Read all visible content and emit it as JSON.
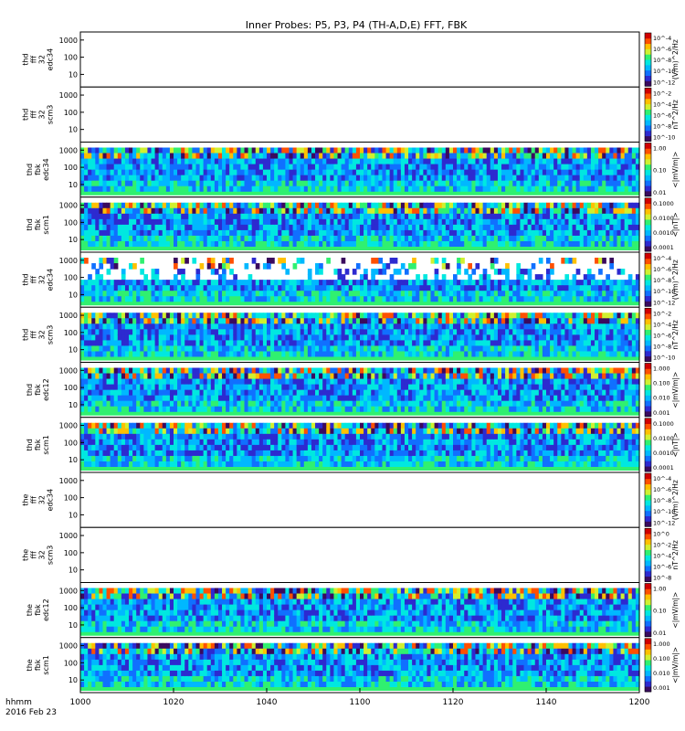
{
  "title": "Inner Probes: P5, P3, P4 (TH-A,D,E) FFT, FBK",
  "date_label": [
    "hhmm",
    "2016 Feb 23"
  ],
  "x_ticks": [
    "1000",
    "1020",
    "1040",
    "1100",
    "1120",
    "1140",
    "1200"
  ],
  "y_ticks": [
    "10",
    "100",
    "1000"
  ],
  "colormap": [
    "#3a0a5e",
    "#2d2ad0",
    "#1070ff",
    "#00b8ff",
    "#00e8e0",
    "#30f070",
    "#d0f030",
    "#ffc000",
    "#ff5000",
    "#d00000"
  ],
  "panels": [
    {
      "label": [
        "thd",
        "fff",
        "32",
        "edc34"
      ],
      "data_color": "",
      "empty": true,
      "colorbar_ticks": [
        "10^-4",
        "10^-6",
        "10^-8",
        "10^-10",
        "10^-12"
      ],
      "colorbar_unit": "(V/m)^2/Hz"
    },
    {
      "label": [
        "thd",
        "fff",
        "32",
        "scm3"
      ],
      "data_color": "",
      "empty": true,
      "colorbar_ticks": [
        "10^-2",
        "10^-4",
        "10^-6",
        "10^-8",
        "10^-10"
      ],
      "colorbar_unit": "nT^2/Hz"
    },
    {
      "label": [
        "thd",
        "fbk",
        "edc34"
      ],
      "data_color": "",
      "empty": false,
      "colorbar_ticks": [
        "1.00",
        "0.10",
        "0.01"
      ],
      "colorbar_unit": "<|mV/m|>"
    },
    {
      "label": [
        "thd",
        "fbk",
        "scm1"
      ],
      "data_color": "",
      "empty": false,
      "colorbar_ticks": [
        "0.1000",
        "0.0100",
        "0.0010",
        "0.0001"
      ],
      "colorbar_unit": "<|nT|>"
    },
    {
      "label": [
        "thd",
        "fff",
        "32",
        "edc34"
      ],
      "data_color": "",
      "empty": false,
      "colorbar_ticks": [
        "10^-4",
        "10^-6",
        "10^-8",
        "10^-10",
        "10^-12"
      ],
      "colorbar_unit": "(V/m)^2/Hz"
    },
    {
      "label": [
        "thd",
        "fff",
        "32",
        "scm3"
      ],
      "data_color": "",
      "empty": false,
      "colorbar_ticks": [
        "10^-2",
        "10^-4",
        "10^-6",
        "10^-8",
        "10^-10"
      ],
      "colorbar_unit": "nT^2/Hz"
    },
    {
      "label": [
        "thd",
        "fbk",
        "edc12"
      ],
      "data_color": "",
      "empty": false,
      "colorbar_ticks": [
        "1.000",
        "0.100",
        "0.010",
        "0.001"
      ],
      "colorbar_unit": "<|mV/m|>"
    },
    {
      "label": [
        "thd",
        "fbk",
        "scm1"
      ],
      "data_color": "",
      "empty": false,
      "colorbar_ticks": [
        "0.1000",
        "0.0100",
        "0.0010",
        "0.0001"
      ],
      "colorbar_unit": "<|nT|>"
    },
    {
      "label": [
        "the",
        "fff",
        "32",
        "edc34"
      ],
      "data_color": "",
      "empty": true,
      "colorbar_ticks": [
        "10^-4",
        "10^-6",
        "10^-8",
        "10^-10",
        "10^-12"
      ],
      "colorbar_unit": "(V/m)^2/Hz"
    },
    {
      "label": [
        "the",
        "fff",
        "32",
        "scm3"
      ],
      "data_color": "",
      "empty": true,
      "colorbar_ticks": [
        "10^0",
        "10^-2",
        "10^-4",
        "10^-6",
        "10^-8"
      ],
      "colorbar_unit": "nT^2/Hz"
    },
    {
      "label": [
        "the",
        "fbk",
        "edc12"
      ],
      "data_color": "",
      "empty": false,
      "colorbar_ticks": [
        "1.00",
        "0.10",
        "0.01"
      ],
      "colorbar_unit": "<|mV/m|>"
    },
    {
      "label": [
        "the",
        "fbk",
        "scm1"
      ],
      "data_color": "",
      "empty": false,
      "colorbar_ticks": [
        "1.000",
        "0.100",
        "0.010",
        "0.001"
      ],
      "colorbar_unit": "<|mV/m|>"
    }
  ],
  "chart_data": {
    "type": "heatmap",
    "title": "Inner Probes: P5, P3, P4 (TH-A,D,E) FFT, FBK",
    "xlabel": "hhmm 2016 Feb 23",
    "x_range": [
      "10:00",
      "12:00"
    ],
    "y_scale": "log",
    "y_ticks": [
      10,
      100,
      1000
    ],
    "series": [
      {
        "name": "thd fff 32 edc34",
        "has_data": false
      },
      {
        "name": "thd fff 32 scm3",
        "has_data": false
      },
      {
        "name": "thd fbk edc34",
        "has_data": true
      },
      {
        "name": "thd fbk scm1",
        "has_data": true
      },
      {
        "name": "thd fff 32 edc34",
        "has_data": true
      },
      {
        "name": "thd fff 32 scm3",
        "has_data": true
      },
      {
        "name": "thd fbk edc12",
        "has_data": true
      },
      {
        "name": "thd fbk scm1",
        "has_data": true
      },
      {
        "name": "the fff 32 edc34",
        "has_data": false
      },
      {
        "name": "the fff 32 scm3",
        "has_data": false
      },
      {
        "name": "the fbk edc12",
        "has_data": true
      },
      {
        "name": "the fbk scm1",
        "has_data": true
      }
    ]
  }
}
